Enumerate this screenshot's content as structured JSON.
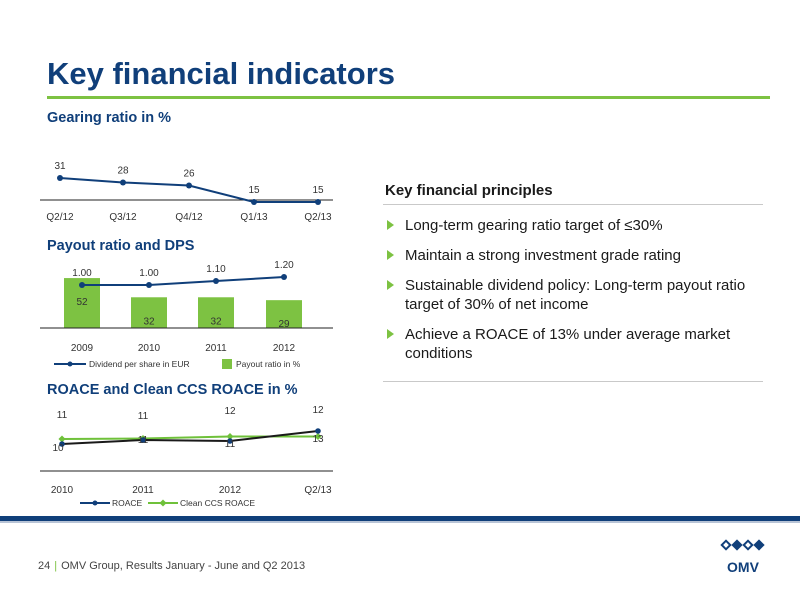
{
  "page": {
    "title": "Key financial indicators",
    "page_number": "24",
    "footer_text": "OMV Group, Results January - June and Q2 2013",
    "logo_text": "OMV"
  },
  "sections": {
    "gearing_title": "Gearing ratio in %",
    "payout_title": "Payout ratio and DPS",
    "roace_title": "ROACE and Clean CCS ROACE in %"
  },
  "principles": {
    "heading": "Key financial principles",
    "items": [
      "Long-term gearing ratio target of ≤30%",
      "Maintain a strong investment grade rating",
      "Sustainable dividend policy: Long-term payout ratio target of 30% of net income",
      "Achieve a ROACE of 13% under average market conditions"
    ]
  },
  "colors": {
    "brand_blue": "#103f7a",
    "brand_green": "#7dc242",
    "line_green": "#6fc13a"
  },
  "chart_data": [
    {
      "type": "line",
      "title": "Gearing ratio in %",
      "categories": [
        "Q2/12",
        "Q3/12",
        "Q4/12",
        "Q1/13",
        "Q2/13"
      ],
      "values": [
        31,
        28,
        26,
        15,
        15
      ],
      "ylim": [
        0,
        40
      ]
    },
    {
      "type": "bar",
      "title": "Payout ratio and DPS",
      "categories": [
        "2009",
        "2010",
        "2011",
        "2012"
      ],
      "series": [
        {
          "name": "Payout ratio in %",
          "type": "bar",
          "values": [
            52,
            32,
            32,
            29
          ]
        },
        {
          "name": "Dividend per share in EUR",
          "type": "line",
          "values": [
            1.0,
            1.0,
            1.1,
            1.2
          ],
          "labels": [
            "1.00",
            "1.00",
            "1.10",
            "1.20"
          ]
        }
      ],
      "legend": "bottom"
    },
    {
      "type": "line",
      "title": "ROACE and Clean CCS ROACE in %",
      "categories": [
        "2010",
        "2011",
        "2012",
        "Q2/13"
      ],
      "series": [
        {
          "name": "ROACE",
          "values": [
            10,
            11,
            11,
            13
          ]
        },
        {
          "name": "Clean CCS ROACE",
          "values": [
            11,
            11,
            12,
            12
          ]
        }
      ],
      "legend": "bottom"
    }
  ]
}
